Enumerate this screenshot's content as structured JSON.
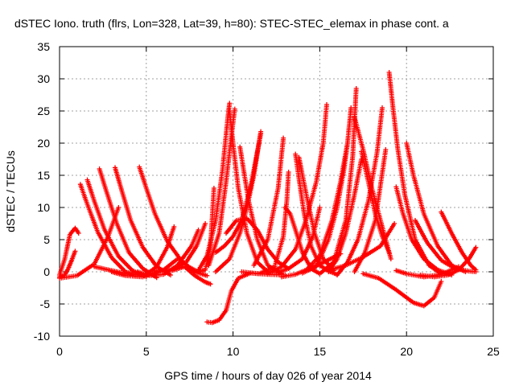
{
  "chart_data": {
    "type": "scatter",
    "title": "dSTEC Iono. truth (flrs, Lon=328, Lat=39, h=80): STEC-STEC_elemax in phase cont. a",
    "xlabel": "GPS time / hours of day 026 of year 2014",
    "ylabel": "dSTEC  / TECUs",
    "xlim": [
      0,
      25
    ],
    "ylim": [
      -10,
      35
    ],
    "x_ticks": [
      0,
      5,
      10,
      15,
      20,
      25
    ],
    "y_ticks": [
      -10,
      -5,
      0,
      5,
      10,
      15,
      20,
      25,
      30,
      35
    ],
    "x_tick_labels": [
      "0",
      "5",
      "10",
      "15",
      "20",
      "25"
    ],
    "y_tick_labels": [
      "-10",
      "-5",
      "0",
      "5",
      "10",
      "15",
      "20",
      "25",
      "30",
      "35"
    ],
    "grid": true,
    "marker": "+",
    "color": "#ff0000",
    "series": [
      {
        "x": [
          0.0,
          0.3,
          0.6,
          0.9,
          1.1
        ],
        "y": [
          -0.5,
          2.0,
          5.8,
          6.8,
          6.0
        ]
      },
      {
        "x": [
          0.0,
          0.3,
          0.5,
          0.7,
          0.9
        ],
        "y": [
          -0.8,
          -0.5,
          0.5,
          1.8,
          3.2
        ]
      },
      {
        "x": [
          0.0,
          1.0,
          2.0,
          2.8,
          3.4
        ],
        "y": [
          -1.0,
          -0.6,
          1.2,
          5.5,
          10.0
        ]
      },
      {
        "x": [
          1.2,
          1.6,
          2.2,
          3.0,
          3.8,
          4.4
        ],
        "y": [
          13.6,
          10.5,
          6.2,
          2.2,
          0.0,
          -0.5
        ]
      },
      {
        "x": [
          1.6,
          2.0,
          2.6,
          3.4,
          4.2,
          5.0
        ],
        "y": [
          14.3,
          11.0,
          6.5,
          2.4,
          0.2,
          -0.8
        ]
      },
      {
        "x": [
          2.3,
          2.7,
          3.3,
          4.0,
          4.8,
          5.6
        ],
        "y": [
          16.0,
          12.5,
          7.5,
          3.0,
          0.5,
          -0.9
        ]
      },
      {
        "x": [
          3.2,
          3.6,
          4.1,
          4.8,
          5.6,
          6.4
        ],
        "y": [
          16.2,
          12.5,
          8.0,
          3.8,
          0.8,
          -0.5
        ]
      },
      {
        "x": [
          4.6,
          5.0,
          5.5,
          6.2,
          7.0,
          7.8,
          8.5
        ],
        "y": [
          16.3,
          13.0,
          9.0,
          4.8,
          1.8,
          0.0,
          -0.6
        ]
      },
      {
        "x": [
          3.0,
          3.8,
          4.8,
          5.6,
          6.2,
          6.6
        ],
        "y": [
          0.0,
          -0.6,
          -0.8,
          0.8,
          3.8,
          7.0
        ]
      },
      {
        "x": [
          4.5,
          5.2,
          6.0,
          6.8,
          7.6,
          8.0
        ],
        "y": [
          0.0,
          -0.6,
          -0.4,
          1.0,
          4.0,
          6.5
        ]
      },
      {
        "x": [
          2.0,
          3.0,
          4.0,
          5.0,
          6.0,
          6.8
        ],
        "y": [
          0.8,
          0.2,
          -0.4,
          -0.6,
          0.3,
          2.0
        ]
      },
      {
        "x": [
          5.5,
          6.5,
          7.3,
          7.9,
          8.4
        ],
        "y": [
          0.0,
          0.3,
          1.5,
          4.0,
          7.5
        ]
      },
      {
        "x": [
          7.4,
          8.0,
          8.4,
          8.7,
          8.9
        ],
        "y": [
          0.8,
          0.0,
          0.3,
          4.0,
          13.0
        ]
      },
      {
        "x": [
          6.5,
          7.2,
          7.8,
          8.4,
          8.7
        ],
        "y": [
          0.2,
          0.8,
          -0.6,
          -1.6,
          -1.9
        ]
      },
      {
        "x": [
          8.5,
          8.8,
          9.2,
          9.6,
          9.9,
          10.3,
          11.0,
          12.0,
          13.0
        ],
        "y": [
          -7.8,
          -7.9,
          -7.5,
          -6.0,
          -3.0,
          -1.0,
          -0.2,
          -0.4,
          -0.5
        ]
      },
      {
        "x": [
          8.0,
          8.5,
          9.0,
          9.4,
          9.7,
          9.8
        ],
        "y": [
          0.2,
          2.5,
          8.0,
          16.0,
          24.0,
          26.2
        ]
      },
      {
        "x": [
          9.8,
          10.0,
          10.3,
          10.8,
          11.4,
          12.0
        ],
        "y": [
          25.0,
          20.0,
          13.0,
          6.0,
          1.5,
          0.0
        ]
      },
      {
        "x": [
          8.6,
          9.2,
          9.6,
          9.9,
          10.1
        ],
        "y": [
          1.0,
          6.0,
          14.0,
          21.0,
          25.3
        ]
      },
      {
        "x": [
          10.4,
          10.6,
          10.9,
          11.4,
          12.0,
          12.8
        ],
        "y": [
          19.4,
          16.0,
          11.0,
          5.0,
          1.0,
          -0.3
        ]
      },
      {
        "x": [
          9.0,
          9.8,
          10.4,
          10.8,
          11.2,
          11.6
        ],
        "y": [
          0.0,
          2.0,
          6.0,
          10.0,
          15.0,
          21.8
        ]
      },
      {
        "x": [
          11.6,
          11.0,
          10.5,
          10.0,
          9.5,
          9.0
        ],
        "y": [
          21.5,
          13.0,
          8.0,
          5.5,
          4.0,
          3.0
        ]
      },
      {
        "x": [
          9.6,
          10.2,
          10.8,
          11.4,
          12.0,
          12.6,
          13.2
        ],
        "y": [
          6.0,
          8.0,
          8.3,
          6.5,
          3.5,
          1.5,
          0.5
        ]
      },
      {
        "x": [
          10.5,
          11.5,
          12.4,
          12.9,
          13.1,
          13.2
        ],
        "y": [
          0.0,
          -0.3,
          0.8,
          5.5,
          11.0,
          15.5
        ]
      },
      {
        "x": [
          11.2,
          12.0,
          12.6,
          12.9
        ],
        "y": [
          1.0,
          5.0,
          13.0,
          20.8
        ]
      },
      {
        "x": [
          13.0,
          13.3,
          13.6,
          14.0,
          14.5,
          15.0
        ],
        "y": [
          10.0,
          9.0,
          6.5,
          3.0,
          0.5,
          -0.3
        ]
      },
      {
        "x": [
          13.6,
          13.8,
          14.1,
          14.5,
          15.0,
          15.6,
          16.0
        ],
        "y": [
          18.3,
          14.5,
          9.0,
          4.0,
          1.0,
          0.0,
          -0.4
        ]
      },
      {
        "x": [
          13.8,
          14.0,
          14.3,
          14.7,
          15.2,
          15.8
        ],
        "y": [
          17.8,
          15.0,
          11.0,
          6.0,
          2.0,
          0.2
        ]
      },
      {
        "x": [
          12.0,
          12.8,
          13.6,
          14.2,
          14.8,
          15.2,
          15.4
        ],
        "y": [
          -0.3,
          0.8,
          3.5,
          8.0,
          14.0,
          20.0,
          26.0
        ]
      },
      {
        "x": [
          12.5,
          13.2,
          14.0,
          14.6,
          15.0
        ],
        "y": [
          -0.2,
          0.5,
          2.0,
          5.5,
          10.0
        ]
      },
      {
        "x": [
          12.8,
          13.6,
          14.4,
          15.0,
          15.6,
          16.2
        ],
        "y": [
          -0.8,
          -0.4,
          0.5,
          1.2,
          2.0,
          2.8
        ]
      },
      {
        "x": [
          14.0,
          14.8,
          15.5,
          16.0,
          16.4,
          16.6
        ],
        "y": [
          -0.2,
          0.8,
          5.0,
          10.0,
          16.0,
          20.0
        ]
      },
      {
        "x": [
          14.3,
          15.0,
          15.7,
          16.2,
          16.6,
          16.8
        ],
        "y": [
          0.5,
          2.5,
          8.0,
          14.0,
          20.0,
          25.5
        ]
      },
      {
        "x": [
          15.0,
          15.8,
          16.5,
          16.9,
          17.1
        ],
        "y": [
          -0.3,
          1.5,
          8.0,
          18.0,
          28.5
        ]
      },
      {
        "x": [
          15.5,
          16.0,
          16.5,
          17.0,
          17.4
        ],
        "y": [
          0.0,
          2.0,
          6.0,
          12.0,
          17.5
        ]
      },
      {
        "x": [
          17.0,
          17.5,
          18.0,
          18.5,
          19.1
        ],
        "y": [
          24.0,
          19.0,
          13.0,
          8.0,
          2.0
        ]
      },
      {
        "x": [
          16.0,
          16.6,
          17.2,
          17.8,
          18.3,
          18.6
        ],
        "y": [
          -0.5,
          1.5,
          5.0,
          11.0,
          18.5,
          25.5
        ]
      },
      {
        "x": [
          17.4,
          17.8,
          18.2,
          18.6,
          19.0
        ],
        "y": [
          18.7,
          14.0,
          9.0,
          5.5,
          3.0
        ]
      },
      {
        "x": [
          17.0,
          17.6,
          18.2,
          18.8
        ],
        "y": [
          0.0,
          3.0,
          8.0,
          19.0
        ]
      },
      {
        "x": [
          15.6,
          16.5,
          17.5,
          18.5,
          19.3
        ],
        "y": [
          0.3,
          1.0,
          2.3,
          4.0,
          7.5
        ]
      },
      {
        "x": [
          19.0,
          19.2,
          19.5,
          19.9,
          20.5,
          21.3,
          22.0
        ],
        "y": [
          31.0,
          26.0,
          19.0,
          12.0,
          5.0,
          1.0,
          -0.3
        ]
      },
      {
        "x": [
          19.4,
          19.8,
          20.3,
          21.0,
          21.8,
          22.6
        ],
        "y": [
          13.2,
          9.0,
          5.0,
          2.0,
          0.3,
          -0.5
        ]
      },
      {
        "x": [
          20.0,
          20.4,
          21.0,
          21.8,
          22.6,
          23.4
        ],
        "y": [
          20.0,
          15.0,
          9.0,
          4.0,
          1.0,
          0.0
        ]
      },
      {
        "x": [
          20.5,
          21.2,
          22.0,
          22.8,
          23.6,
          24.0
        ],
        "y": [
          8.0,
          4.5,
          1.8,
          0.5,
          0.1,
          0.0
        ]
      },
      {
        "x": [
          22.0,
          22.6,
          23.2,
          23.7,
          24.0
        ],
        "y": [
          9.3,
          6.0,
          3.0,
          1.0,
          0.3
        ]
      },
      {
        "x": [
          17.5,
          18.4,
          19.4,
          20.4,
          21.0,
          21.6,
          22.0
        ],
        "y": [
          -0.3,
          -1.0,
          -2.8,
          -4.8,
          -5.3,
          -4.0,
          -1.5
        ]
      },
      {
        "x": [
          20.8,
          21.6,
          22.4,
          23.0,
          23.6,
          24.0
        ],
        "y": [
          -0.5,
          -0.8,
          -0.5,
          0.3,
          2.0,
          3.8
        ]
      },
      {
        "x": [
          19.4,
          20.0,
          21.0,
          22.0,
          23.0
        ],
        "y": [
          0.2,
          -0.3,
          -0.8,
          -0.4,
          0.8
        ]
      }
    ]
  }
}
